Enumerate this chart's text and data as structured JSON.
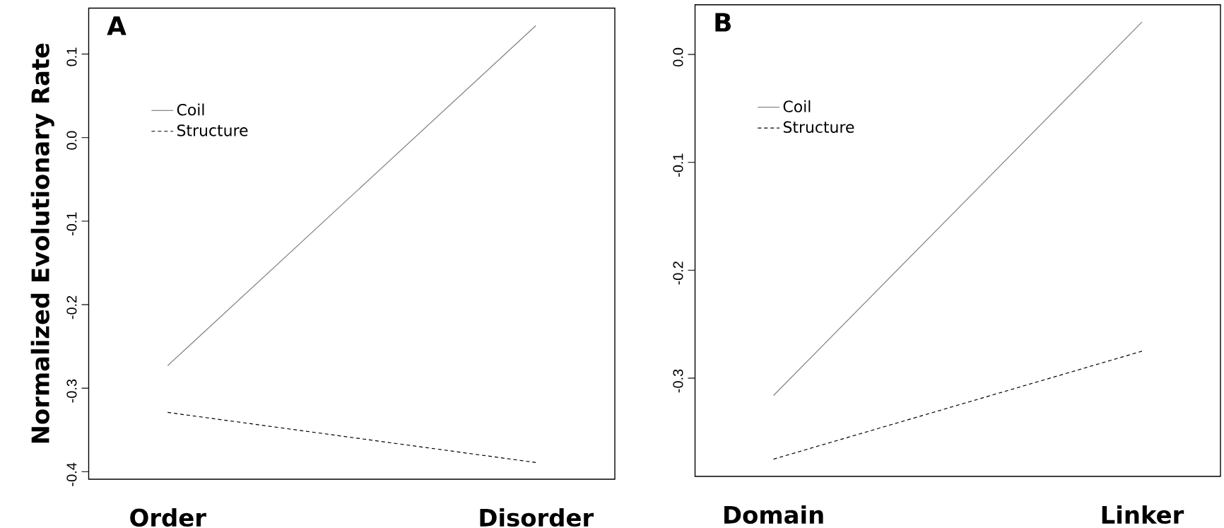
{
  "chart_data": [
    {
      "type": "line",
      "title": "A",
      "ylabel": "Normalized Evolutionary Rate",
      "categories": [
        "Order",
        "Disorder"
      ],
      "legend": "top left",
      "ylim": [
        -0.409,
        0.155
      ],
      "yticks": [
        -0.4,
        -0.3,
        -0.2,
        -0.1,
        {
          "value": 0,
          "label": "0.0"
        },
        0.1
      ],
      "series": [
        {
          "name": "Coil",
          "color": "#808080",
          "line_style": "solid",
          "values": [
            -0.273,
            0.134
          ]
        },
        {
          "name": "Structure",
          "color": "#000000",
          "line_style": "dashed",
          "values": [
            -0.329,
            -0.389
          ]
        }
      ]
    },
    {
      "type": "line",
      "title": "B",
      "categories": [
        "Domain",
        "Linker"
      ],
      "legend": "top left",
      "ylim": [
        -0.391,
        0.046
      ],
      "yticks": [
        -0.3,
        -0.2,
        -0.1,
        {
          "value": 0,
          "label": "0.0"
        }
      ],
      "series": [
        {
          "name": "Coil",
          "color": "#808080",
          "line_style": "solid",
          "values": [
            -0.316,
            0.03
          ]
        },
        {
          "name": "Structure",
          "color": "#000000",
          "line_style": "dashed",
          "values": [
            -0.375,
            -0.275
          ]
        }
      ]
    }
  ]
}
